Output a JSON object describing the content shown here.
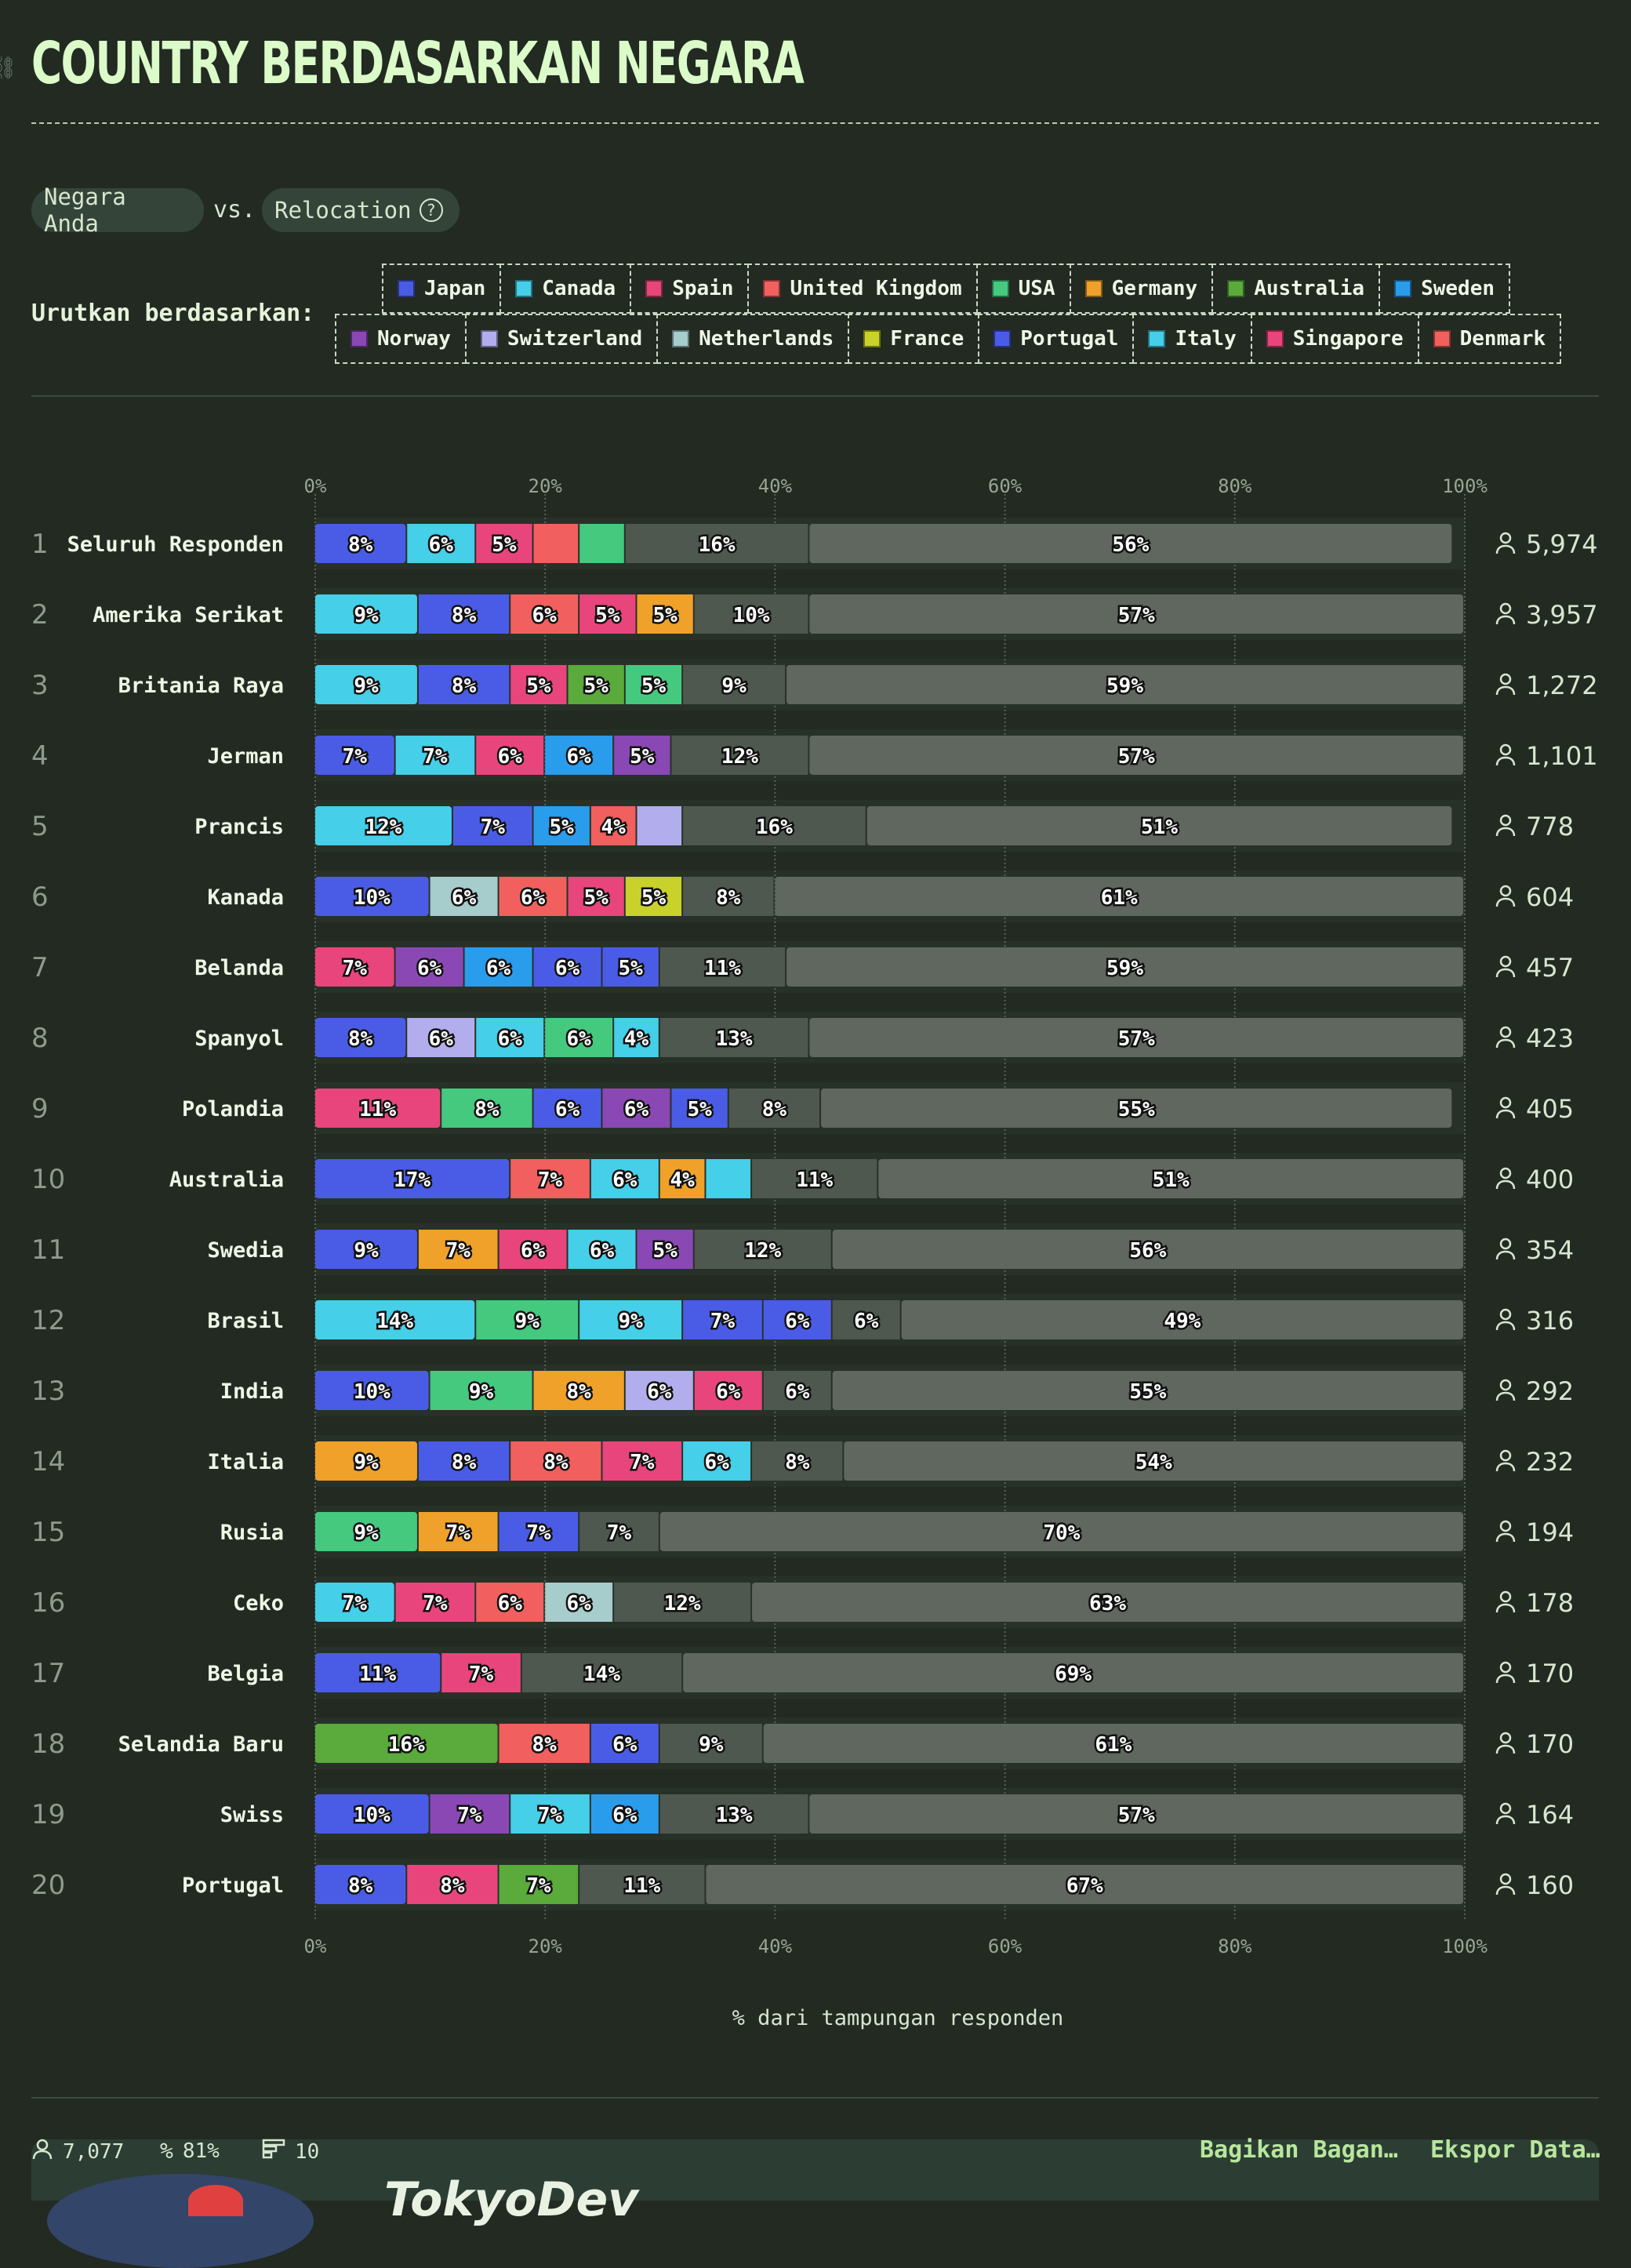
{
  "header": {
    "title": "COUNTRY BERDASARKAN NEGARA",
    "pill_left": "Negara Anda",
    "vs": "vs.",
    "pill_right": "Relocation",
    "sort_label": "Urutkan berdasarkan:"
  },
  "legend": {
    "row1": [
      {
        "label": "Japan",
        "color": "#4a5ce6"
      },
      {
        "label": "Canada",
        "color": "#45cfe8"
      },
      {
        "label": "Spain",
        "color": "#e8457d"
      },
      {
        "label": "United Kingdom",
        "color": "#f1605e"
      },
      {
        "label": "USA",
        "color": "#44c97f"
      },
      {
        "label": "Germany",
        "color": "#f0a12a"
      },
      {
        "label": "Australia",
        "color": "#5aaa3c"
      },
      {
        "label": "Sweden",
        "color": "#2a9cec"
      }
    ],
    "row2": [
      {
        "label": "Norway",
        "color": "#8a48b5"
      },
      {
        "label": "Switzerland",
        "color": "#b2aeee"
      },
      {
        "label": "Netherlands",
        "color": "#a6cccc"
      },
      {
        "label": "France",
        "color": "#c9d22a"
      },
      {
        "label": "Portugal",
        "color": "#4a5ce6"
      },
      {
        "label": "Italy",
        "color": "#45cfe8"
      },
      {
        "label": "Singapore",
        "color": "#e8457d"
      },
      {
        "label": "Denmark",
        "color": "#f1605e"
      }
    ]
  },
  "chart_data": {
    "type": "bar",
    "orientation": "horizontal",
    "stacked": true,
    "xlabel": "% dari tampungan responden",
    "xlim": [
      0,
      100
    ],
    "xticks": [
      "0%",
      "20%",
      "40%",
      "60%",
      "80%",
      "100%"
    ],
    "gridlines": true,
    "rows": [
      {
        "rank": "1",
        "name": "Seluruh Responden",
        "count": "5,974",
        "segments": [
          {
            "value": 8,
            "label": "8%",
            "color": "#4a5ce6"
          },
          {
            "value": 6,
            "label": "6%",
            "color": "#45cfe8"
          },
          {
            "value": 5,
            "label": "5%",
            "color": "#e8457d"
          },
          {
            "value": 4,
            "label": "",
            "color": "#f1605e"
          },
          {
            "value": 4,
            "label": "",
            "color": "#44c97f"
          },
          {
            "value": 16,
            "label": "16%",
            "color": "#4e584e"
          },
          {
            "value": 56,
            "label": "56%",
            "color": "#5f675f"
          }
        ]
      },
      {
        "rank": "2",
        "name": "Amerika Serikat",
        "count": "3,957",
        "segments": [
          {
            "value": 9,
            "label": "9%",
            "color": "#45cfe8"
          },
          {
            "value": 8,
            "label": "8%",
            "color": "#4a5ce6"
          },
          {
            "value": 6,
            "label": "6%",
            "color": "#f1605e"
          },
          {
            "value": 5,
            "label": "5%",
            "color": "#e8457d"
          },
          {
            "value": 5,
            "label": "5%",
            "color": "#f0a12a"
          },
          {
            "value": 10,
            "label": "10%",
            "color": "#4e584e"
          },
          {
            "value": 57,
            "label": "57%",
            "color": "#5f675f"
          }
        ]
      },
      {
        "rank": "3",
        "name": "Britania Raya",
        "count": "1,272",
        "segments": [
          {
            "value": 9,
            "label": "9%",
            "color": "#45cfe8"
          },
          {
            "value": 8,
            "label": "8%",
            "color": "#4a5ce6"
          },
          {
            "value": 5,
            "label": "5%",
            "color": "#e8457d"
          },
          {
            "value": 5,
            "label": "5%",
            "color": "#5aaa3c"
          },
          {
            "value": 5,
            "label": "5%",
            "color": "#44c97f"
          },
          {
            "value": 9,
            "label": "9%",
            "color": "#4e584e"
          },
          {
            "value": 59,
            "label": "59%",
            "color": "#5f675f"
          }
        ]
      },
      {
        "rank": "4",
        "name": "Jerman",
        "count": "1,101",
        "segments": [
          {
            "value": 7,
            "label": "7%",
            "color": "#4a5ce6"
          },
          {
            "value": 7,
            "label": "7%",
            "color": "#45cfe8"
          },
          {
            "value": 6,
            "label": "6%",
            "color": "#e8457d"
          },
          {
            "value": 6,
            "label": "6%",
            "color": "#2a9cec"
          },
          {
            "value": 5,
            "label": "5%",
            "color": "#8a48b5"
          },
          {
            "value": 12,
            "label": "12%",
            "color": "#4e584e"
          },
          {
            "value": 57,
            "label": "57%",
            "color": "#5f675f"
          }
        ]
      },
      {
        "rank": "5",
        "name": "Prancis",
        "count": "778",
        "segments": [
          {
            "value": 12,
            "label": "12%",
            "color": "#45cfe8"
          },
          {
            "value": 7,
            "label": "7%",
            "color": "#4a5ce6"
          },
          {
            "value": 5,
            "label": "5%",
            "color": "#2a9cec"
          },
          {
            "value": 4,
            "label": "4%",
            "color": "#f1605e"
          },
          {
            "value": 4,
            "label": "",
            "color": "#b2aeee"
          },
          {
            "value": 16,
            "label": "16%",
            "color": "#4e584e"
          },
          {
            "value": 51,
            "label": "51%",
            "color": "#5f675f"
          }
        ]
      },
      {
        "rank": "6",
        "name": "Kanada",
        "count": "604",
        "segments": [
          {
            "value": 10,
            "label": "10%",
            "color": "#4a5ce6"
          },
          {
            "value": 6,
            "label": "6%",
            "color": "#a6cccc"
          },
          {
            "value": 6,
            "label": "6%",
            "color": "#f1605e"
          },
          {
            "value": 5,
            "label": "5%",
            "color": "#e8457d"
          },
          {
            "value": 5,
            "label": "5%",
            "color": "#c9d22a"
          },
          {
            "value": 8,
            "label": "8%",
            "color": "#4e584e"
          },
          {
            "value": 61,
            "label": "61%",
            "color": "#5f675f"
          }
        ]
      },
      {
        "rank": "7",
        "name": "Belanda",
        "count": "457",
        "segments": [
          {
            "value": 7,
            "label": "7%",
            "color": "#e8457d"
          },
          {
            "value": 6,
            "label": "6%",
            "color": "#8a48b5"
          },
          {
            "value": 6,
            "label": "6%",
            "color": "#2a9cec"
          },
          {
            "value": 6,
            "label": "6%",
            "color": "#4a5ce6"
          },
          {
            "value": 5,
            "label": "5%",
            "color": "#4a5ce6"
          },
          {
            "value": 11,
            "label": "11%",
            "color": "#4e584e"
          },
          {
            "value": 59,
            "label": "59%",
            "color": "#5f675f"
          }
        ]
      },
      {
        "rank": "8",
        "name": "Spanyol",
        "count": "423",
        "segments": [
          {
            "value": 8,
            "label": "8%",
            "color": "#4a5ce6"
          },
          {
            "value": 6,
            "label": "6%",
            "color": "#b2aeee"
          },
          {
            "value": 6,
            "label": "6%",
            "color": "#45cfe8"
          },
          {
            "value": 6,
            "label": "6%",
            "color": "#44c97f"
          },
          {
            "value": 4,
            "label": "4%",
            "color": "#45cfe8"
          },
          {
            "value": 13,
            "label": "13%",
            "color": "#4e584e"
          },
          {
            "value": 57,
            "label": "57%",
            "color": "#5f675f"
          }
        ]
      },
      {
        "rank": "9",
        "name": "Polandia",
        "count": "405",
        "segments": [
          {
            "value": 11,
            "label": "11%",
            "color": "#e8457d"
          },
          {
            "value": 8,
            "label": "8%",
            "color": "#44c97f"
          },
          {
            "value": 6,
            "label": "6%",
            "color": "#4a5ce6"
          },
          {
            "value": 6,
            "label": "6%",
            "color": "#8a48b5"
          },
          {
            "value": 5,
            "label": "5%",
            "color": "#4a5ce6"
          },
          {
            "value": 8,
            "label": "8%",
            "color": "#4e584e"
          },
          {
            "value": 55,
            "label": "55%",
            "color": "#5f675f"
          }
        ]
      },
      {
        "rank": "10",
        "name": "Australia",
        "count": "400",
        "segments": [
          {
            "value": 17,
            "label": "17%",
            "color": "#4a5ce6"
          },
          {
            "value": 7,
            "label": "7%",
            "color": "#f1605e"
          },
          {
            "value": 6,
            "label": "6%",
            "color": "#45cfe8"
          },
          {
            "value": 4,
            "label": "4%",
            "color": "#f0a12a"
          },
          {
            "value": 4,
            "label": "",
            "color": "#45cfe8"
          },
          {
            "value": 11,
            "label": "11%",
            "color": "#4e584e"
          },
          {
            "value": 51,
            "label": "51%",
            "color": "#5f675f"
          }
        ]
      },
      {
        "rank": "11",
        "name": "Swedia",
        "count": "354",
        "segments": [
          {
            "value": 9,
            "label": "9%",
            "color": "#4a5ce6"
          },
          {
            "value": 7,
            "label": "7%",
            "color": "#f0a12a"
          },
          {
            "value": 6,
            "label": "6%",
            "color": "#e8457d"
          },
          {
            "value": 6,
            "label": "6%",
            "color": "#45cfe8"
          },
          {
            "value": 5,
            "label": "5%",
            "color": "#8a48b5"
          },
          {
            "value": 12,
            "label": "12%",
            "color": "#4e584e"
          },
          {
            "value": 56,
            "label": "56%",
            "color": "#5f675f"
          }
        ]
      },
      {
        "rank": "12",
        "name": "Brasil",
        "count": "316",
        "segments": [
          {
            "value": 14,
            "label": "14%",
            "color": "#45cfe8"
          },
          {
            "value": 9,
            "label": "9%",
            "color": "#44c97f"
          },
          {
            "value": 9,
            "label": "9%",
            "color": "#45cfe8"
          },
          {
            "value": 7,
            "label": "7%",
            "color": "#4a5ce6"
          },
          {
            "value": 6,
            "label": "6%",
            "color": "#4a5ce6"
          },
          {
            "value": 6,
            "label": "6%",
            "color": "#4e584e"
          },
          {
            "value": 49,
            "label": "49%",
            "color": "#5f675f"
          }
        ]
      },
      {
        "rank": "13",
        "name": "India",
        "count": "292",
        "segments": [
          {
            "value": 10,
            "label": "10%",
            "color": "#4a5ce6"
          },
          {
            "value": 9,
            "label": "9%",
            "color": "#44c97f"
          },
          {
            "value": 8,
            "label": "8%",
            "color": "#f0a12a"
          },
          {
            "value": 6,
            "label": "6%",
            "color": "#b2aeee"
          },
          {
            "value": 6,
            "label": "6%",
            "color": "#e8457d"
          },
          {
            "value": 6,
            "label": "6%",
            "color": "#4e584e"
          },
          {
            "value": 55,
            "label": "55%",
            "color": "#5f675f"
          }
        ]
      },
      {
        "rank": "14",
        "name": "Italia",
        "count": "232",
        "segments": [
          {
            "value": 9,
            "label": "9%",
            "color": "#f0a12a"
          },
          {
            "value": 8,
            "label": "8%",
            "color": "#4a5ce6"
          },
          {
            "value": 8,
            "label": "8%",
            "color": "#f1605e"
          },
          {
            "value": 7,
            "label": "7%",
            "color": "#e8457d"
          },
          {
            "value": 6,
            "label": "6%",
            "color": "#45cfe8"
          },
          {
            "value": 8,
            "label": "8%",
            "color": "#4e584e"
          },
          {
            "value": 54,
            "label": "54%",
            "color": "#5f675f"
          }
        ]
      },
      {
        "rank": "15",
        "name": "Rusia",
        "count": "194",
        "segments": [
          {
            "value": 9,
            "label": "9%",
            "color": "#44c97f"
          },
          {
            "value": 7,
            "label": "7%",
            "color": "#f0a12a"
          },
          {
            "value": 7,
            "label": "7%",
            "color": "#4a5ce6"
          },
          {
            "value": 7,
            "label": "7%",
            "color": "#4e584e"
          },
          {
            "value": 70,
            "label": "70%",
            "color": "#5f675f"
          }
        ]
      },
      {
        "rank": "16",
        "name": "Ceko",
        "count": "178",
        "segments": [
          {
            "value": 7,
            "label": "7%",
            "color": "#45cfe8"
          },
          {
            "value": 7,
            "label": "7%",
            "color": "#e8457d"
          },
          {
            "value": 6,
            "label": "6%",
            "color": "#f1605e"
          },
          {
            "value": 6,
            "label": "6%",
            "color": "#a6cccc"
          },
          {
            "value": 12,
            "label": "12%",
            "color": "#4e584e"
          },
          {
            "value": 63,
            "label": "63%",
            "color": "#5f675f"
          }
        ]
      },
      {
        "rank": "17",
        "name": "Belgia",
        "count": "170",
        "segments": [
          {
            "value": 11,
            "label": "11%",
            "color": "#4a5ce6"
          },
          {
            "value": 7,
            "label": "7%",
            "color": "#e8457d"
          },
          {
            "value": 14,
            "label": "14%",
            "color": "#4e584e"
          },
          {
            "value": 69,
            "label": "69%",
            "color": "#5f675f"
          }
        ]
      },
      {
        "rank": "18",
        "name": "Selandia Baru",
        "count": "170",
        "segments": [
          {
            "value": 16,
            "label": "16%",
            "color": "#5aaa3c"
          },
          {
            "value": 8,
            "label": "8%",
            "color": "#f1605e"
          },
          {
            "value": 6,
            "label": "6%",
            "color": "#4a5ce6"
          },
          {
            "value": 9,
            "label": "9%",
            "color": "#4e584e"
          },
          {
            "value": 61,
            "label": "61%",
            "color": "#5f675f"
          }
        ]
      },
      {
        "rank": "19",
        "name": "Swiss",
        "count": "164",
        "segments": [
          {
            "value": 10,
            "label": "10%",
            "color": "#4a5ce6"
          },
          {
            "value": 7,
            "label": "7%",
            "color": "#8a48b5"
          },
          {
            "value": 7,
            "label": "7%",
            "color": "#45cfe8"
          },
          {
            "value": 6,
            "label": "6%",
            "color": "#2a9cec"
          },
          {
            "value": 13,
            "label": "13%",
            "color": "#4e584e"
          },
          {
            "value": 57,
            "label": "57%",
            "color": "#5f675f"
          }
        ]
      },
      {
        "rank": "20",
        "name": "Portugal",
        "count": "160",
        "segments": [
          {
            "value": 8,
            "label": "8%",
            "color": "#4a5ce6"
          },
          {
            "value": 8,
            "label": "8%",
            "color": "#e8457d"
          },
          {
            "value": 7,
            "label": "7%",
            "color": "#5aaa3c"
          },
          {
            "value": 11,
            "label": "11%",
            "color": "#4e584e"
          },
          {
            "value": 67,
            "label": "67%",
            "color": "#5f675f"
          }
        ]
      }
    ]
  },
  "footer": {
    "respondents": "7,077",
    "percent": "81%",
    "count": "10",
    "share": "Bagikan Bagan…",
    "export": "Ekspor Data…",
    "brand": "TokyoDev"
  }
}
